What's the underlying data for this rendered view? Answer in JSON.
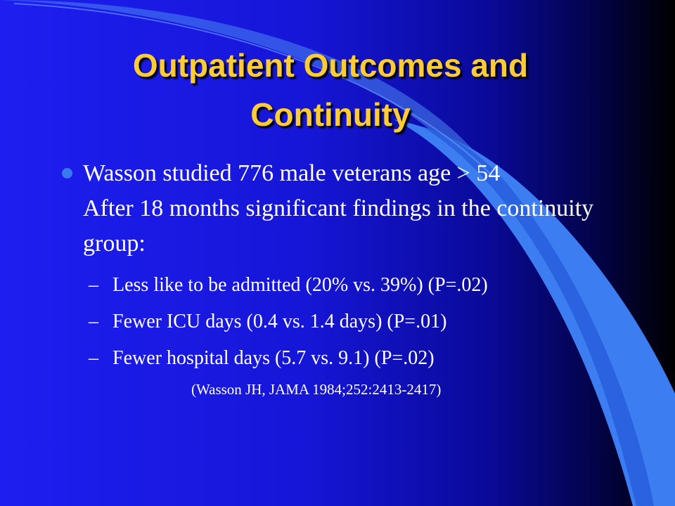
{
  "title": "Outpatient Outcomes and Continuity",
  "bullets": [
    {
      "text": "Wasson studied 776 male veterans age > 54\nAfter 18 months significant findings in the continuity group:",
      "subitems": [
        "Less like to be admitted (20% vs. 39%) (P=.02)",
        "Fewer ICU days (0.4 vs. 1.4 days) (P=.01)",
        "Fewer hospital days (5.7 vs. 9.1) (P=.02)"
      ]
    }
  ],
  "citation": "(Wasson JH, JAMA 1984;252:2413-2417)"
}
